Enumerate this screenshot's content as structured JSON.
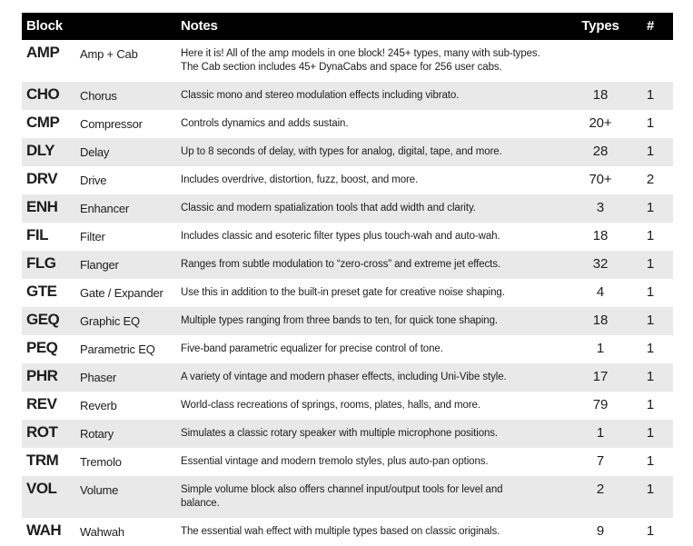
{
  "colors": {
    "header_bg": "#000000",
    "header_text": "#ffffff",
    "body_text": "#1d1d1d",
    "shaded_row_bg": "#e9e9e9",
    "page_bg": "#ffffff"
  },
  "table": {
    "headers": {
      "block": "Block",
      "notes": "Notes",
      "types": "Types",
      "count": "#"
    },
    "rows": [
      {
        "code": "AMP",
        "name": "Amp + Cab",
        "notes": "Here it is! All of the amp models in one block! 245+ types, many with sub-types.\nThe Cab section includes 45+ DynaCabs and space for 256 user cabs.",
        "types": "",
        "count": ""
      },
      {
        "code": "CHO",
        "name": "Chorus",
        "notes": "Classic mono and stereo modulation effects including vibrato.",
        "types": "18",
        "count": "1"
      },
      {
        "code": "CMP",
        "name": "Compressor",
        "notes": "Controls dynamics and adds sustain.",
        "types": "20+",
        "count": "1"
      },
      {
        "code": "DLY",
        "name": "Delay",
        "notes": "Up to 8 seconds of delay, with types for analog, digital, tape, and more.",
        "types": "28",
        "count": "1"
      },
      {
        "code": "DRV",
        "name": "Drive",
        "notes": "Includes overdrive, distortion, fuzz, boost, and more.",
        "types": "70+",
        "count": "2"
      },
      {
        "code": "ENH",
        "name": "Enhancer",
        "notes": "Classic and modern spatialization tools that add width and clarity.",
        "types": "3",
        "count": "1"
      },
      {
        "code": "FIL",
        "name": "Filter",
        "notes": "Includes classic and esoteric filter types plus touch-wah and auto-wah.",
        "types": "18",
        "count": "1"
      },
      {
        "code": "FLG",
        "name": "Flanger",
        "notes": "Ranges from subtle modulation to “zero-cross” and extreme jet effects.",
        "types": "32",
        "count": "1"
      },
      {
        "code": "GTE",
        "name": "Gate / Expander",
        "notes": "Use this in addition to the built-in preset gate for creative noise shaping.",
        "types": "4",
        "count": "1"
      },
      {
        "code": "GEQ",
        "name": "Graphic EQ",
        "notes": "Multiple types ranging from three bands to ten, for quick tone shaping.",
        "types": "18",
        "count": "1"
      },
      {
        "code": "PEQ",
        "name": "Parametric EQ",
        "notes": "Five-band parametric equalizer for precise control of tone.",
        "types": "1",
        "count": "1"
      },
      {
        "code": "PHR",
        "name": "Phaser",
        "notes": "A variety of vintage and modern phaser effects, including Uni-Vibe style.",
        "types": "17",
        "count": "1"
      },
      {
        "code": "REV",
        "name": "Reverb",
        "notes": "World-class recreations of springs, rooms, plates, halls, and more.",
        "types": "79",
        "count": "1"
      },
      {
        "code": "ROT",
        "name": "Rotary",
        "notes": "Simulates a classic rotary speaker with multiple microphone positions.",
        "types": "1",
        "count": "1"
      },
      {
        "code": "TRM",
        "name": "Tremolo",
        "notes": "Essential vintage and modern tremolo styles, plus auto-pan options.",
        "types": "7",
        "count": "1"
      },
      {
        "code": "VOL",
        "name": "Volume",
        "notes": "Simple volume block also offers channel input/output tools for level and\nbalance.",
        "types": "2",
        "count": "1"
      },
      {
        "code": "WAH",
        "name": "Wahwah",
        "notes": "The essential wah effect with multiple types based on classic originals.",
        "types": "9",
        "count": "1"
      }
    ]
  }
}
